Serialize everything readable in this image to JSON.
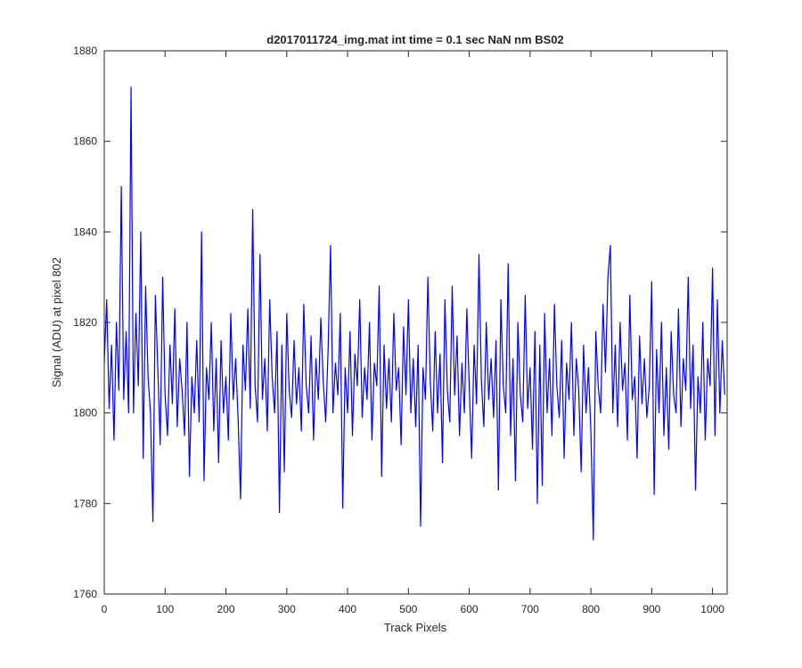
{
  "chart_data": {
    "type": "line",
    "title": "d2017011724_img.mat int time = 0.1 sec  NaN nm BS02",
    "xlabel": "Track Pixels",
    "ylabel": "Signal (ADU) at pixel 802",
    "color": "#0000ff",
    "xlim": [
      0,
      1024
    ],
    "ylim": [
      1760,
      1880
    ],
    "xticks": [
      0,
      100,
      200,
      300,
      400,
      500,
      600,
      700,
      800,
      900,
      1000
    ],
    "yticks": [
      1760,
      1780,
      1800,
      1820,
      1840,
      1860,
      1880
    ],
    "x": [
      0,
      4,
      8,
      12,
      16,
      20,
      24,
      28,
      32,
      36,
      40,
      44,
      48,
      52,
      56,
      60,
      64,
      68,
      72,
      76,
      80,
      84,
      88,
      92,
      96,
      100,
      104,
      108,
      112,
      116,
      120,
      124,
      128,
      132,
      136,
      140,
      144,
      148,
      152,
      156,
      160,
      164,
      168,
      172,
      176,
      180,
      184,
      188,
      192,
      196,
      200,
      204,
      208,
      212,
      216,
      220,
      224,
      228,
      232,
      236,
      240,
      244,
      248,
      252,
      256,
      260,
      264,
      268,
      272,
      276,
      280,
      284,
      288,
      292,
      296,
      300,
      304,
      308,
      312,
      316,
      320,
      324,
      328,
      332,
      336,
      340,
      344,
      348,
      352,
      356,
      360,
      364,
      368,
      372,
      376,
      380,
      384,
      388,
      392,
      396,
      400,
      404,
      408,
      412,
      416,
      420,
      424,
      428,
      432,
      436,
      440,
      444,
      448,
      452,
      456,
      460,
      464,
      468,
      472,
      476,
      480,
      484,
      488,
      492,
      496,
      500,
      504,
      508,
      512,
      516,
      520,
      524,
      528,
      532,
      536,
      540,
      544,
      548,
      552,
      556,
      560,
      564,
      568,
      572,
      576,
      580,
      584,
      588,
      592,
      596,
      600,
      604,
      608,
      612,
      616,
      620,
      624,
      628,
      632,
      636,
      640,
      644,
      648,
      652,
      656,
      660,
      664,
      668,
      672,
      676,
      680,
      684,
      688,
      692,
      696,
      700,
      704,
      708,
      712,
      716,
      720,
      724,
      728,
      732,
      736,
      740,
      744,
      748,
      752,
      756,
      760,
      764,
      768,
      772,
      776,
      780,
      784,
      788,
      792,
      796,
      800,
      804,
      808,
      812,
      816,
      820,
      824,
      828,
      832,
      836,
      840,
      844,
      848,
      852,
      856,
      860,
      864,
      868,
      872,
      876,
      880,
      884,
      888,
      892,
      896,
      900,
      904,
      908,
      912,
      916,
      920,
      924,
      928,
      932,
      936,
      940,
      944,
      948,
      952,
      956,
      960,
      964,
      968,
      972,
      976,
      980,
      984,
      988,
      992,
      996,
      1000,
      1004,
      1008,
      1012,
      1016,
      1020
    ],
    "values": [
      1811,
      1825,
      1801,
      1815,
      1794,
      1820,
      1805,
      1850,
      1803,
      1818,
      1800,
      1872,
      1800,
      1822,
      1806,
      1840,
      1790,
      1828,
      1808,
      1800,
      1776,
      1826,
      1810,
      1793,
      1830,
      1804,
      1795,
      1815,
      1802,
      1823,
      1797,
      1812,
      1805,
      1795,
      1820,
      1786,
      1808,
      1800,
      1816,
      1798,
      1840,
      1785,
      1810,
      1803,
      1820,
      1796,
      1812,
      1789,
      1816,
      1800,
      1808,
      1794,
      1822,
      1803,
      1812,
      1799,
      1781,
      1815,
      1805,
      1823,
      1801,
      1845,
      1806,
      1798,
      1835,
      1803,
      1812,
      1796,
      1825,
      1808,
      1800,
      1818,
      1778,
      1815,
      1787,
      1822,
      1805,
      1799,
      1816,
      1802,
      1810,
      1796,
      1824,
      1806,
      1800,
      1817,
      1794,
      1812,
      1803,
      1821,
      1807,
      1798,
      1814,
      1837,
      1800,
      1811,
      1804,
      1822,
      1779,
      1810,
      1800,
      1818,
      1795,
      1813,
      1806,
      1825,
      1799,
      1810,
      1803,
      1820,
      1794,
      1811,
      1806,
      1828,
      1786,
      1815,
      1801,
      1812,
      1798,
      1822,
      1805,
      1810,
      1793,
      1819,
      1804,
      1825,
      1800,
      1812,
      1797,
      1815,
      1775,
      1810,
      1803,
      1830,
      1807,
      1796,
      1818,
      1800,
      1813,
      1789,
      1825,
      1805,
      1798,
      1828,
      1804,
      1817,
      1795,
      1811,
      1800,
      1823,
      1806,
      1790,
      1815,
      1802,
      1835,
      1807,
      1797,
      1820,
      1803,
      1812,
      1799,
      1816,
      1783,
      1825,
      1806,
      1800,
      1833,
      1795,
      1812,
      1785,
      1820,
      1804,
      1798,
      1826,
      1801,
      1810,
      1792,
      1818,
      1780,
      1815,
      1784,
      1822,
      1800,
      1812,
      1795,
      1824,
      1806,
      1799,
      1816,
      1790,
      1811,
      1803,
      1820,
      1795,
      1812,
      1805,
      1787,
      1815,
      1800,
      1810,
      1796,
      1772,
      1818,
      1806,
      1800,
      1824,
      1809,
      1830,
      1837,
      1800,
      1815,
      1797,
      1820,
      1805,
      1811,
      1794,
      1826,
      1803,
      1808,
      1790,
      1817,
      1802,
      1812,
      1799,
      1806,
      1829,
      1782,
      1814,
      1800,
      1820,
      1795,
      1810,
      1792,
      1818,
      1804,
      1800,
      1823,
      1797,
      1812,
      1805,
      1830,
      1801,
      1815,
      1783,
      1808,
      1800,
      1820,
      1794,
      1812,
      1806,
      1832,
      1795,
      1825,
      1800,
      1816,
      1804
    ]
  }
}
